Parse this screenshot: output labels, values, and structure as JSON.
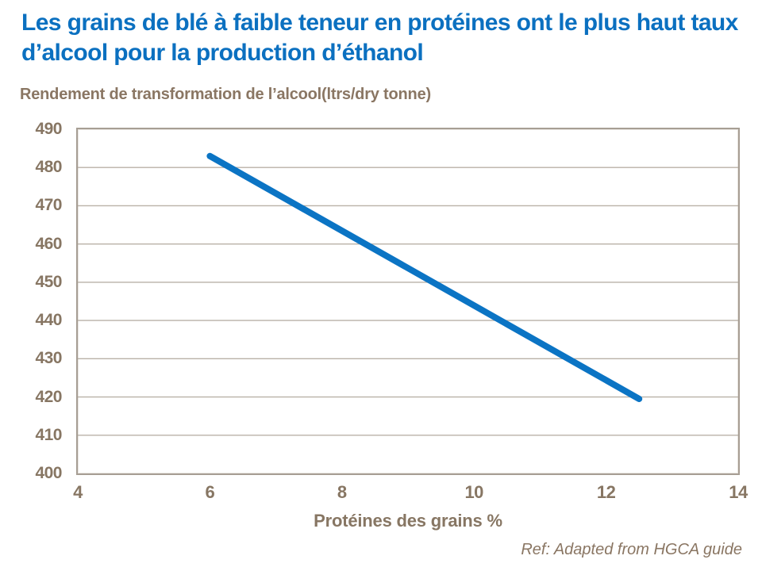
{
  "colors": {
    "title_blue": "#0b70c0",
    "label_brown": "#877663",
    "gridline": "#b9b1a7",
    "plot_border": "#a79e94",
    "series_blue": "#0b74c4"
  },
  "chart_data": {
    "type": "line",
    "title": "Les grains de blé à faible teneur en protéines ont le plus haut taux d’alcool pour la production d’éthanol",
    "subtitle": "Rendement de transformation de l’alcool(ltrs/dry tonne)",
    "xlabel": "Protéines des grains %",
    "ylabel": "",
    "footer": "Ref: Adapted from HGCA guide",
    "xlim": [
      4,
      14
    ],
    "ylim": [
      400,
      490
    ],
    "x_ticks": [
      4,
      6,
      8,
      10,
      12,
      14
    ],
    "y_ticks": [
      400,
      410,
      420,
      430,
      440,
      450,
      460,
      470,
      480,
      490
    ],
    "grid": "horizontal",
    "legend": "none",
    "series": [
      {
        "name": "Rendement de transformation de l’alcool",
        "x": [
          6,
          12.5
        ],
        "y": [
          483,
          419.5
        ],
        "color": "#0b74c4",
        "stroke_width": 8
      }
    ]
  }
}
